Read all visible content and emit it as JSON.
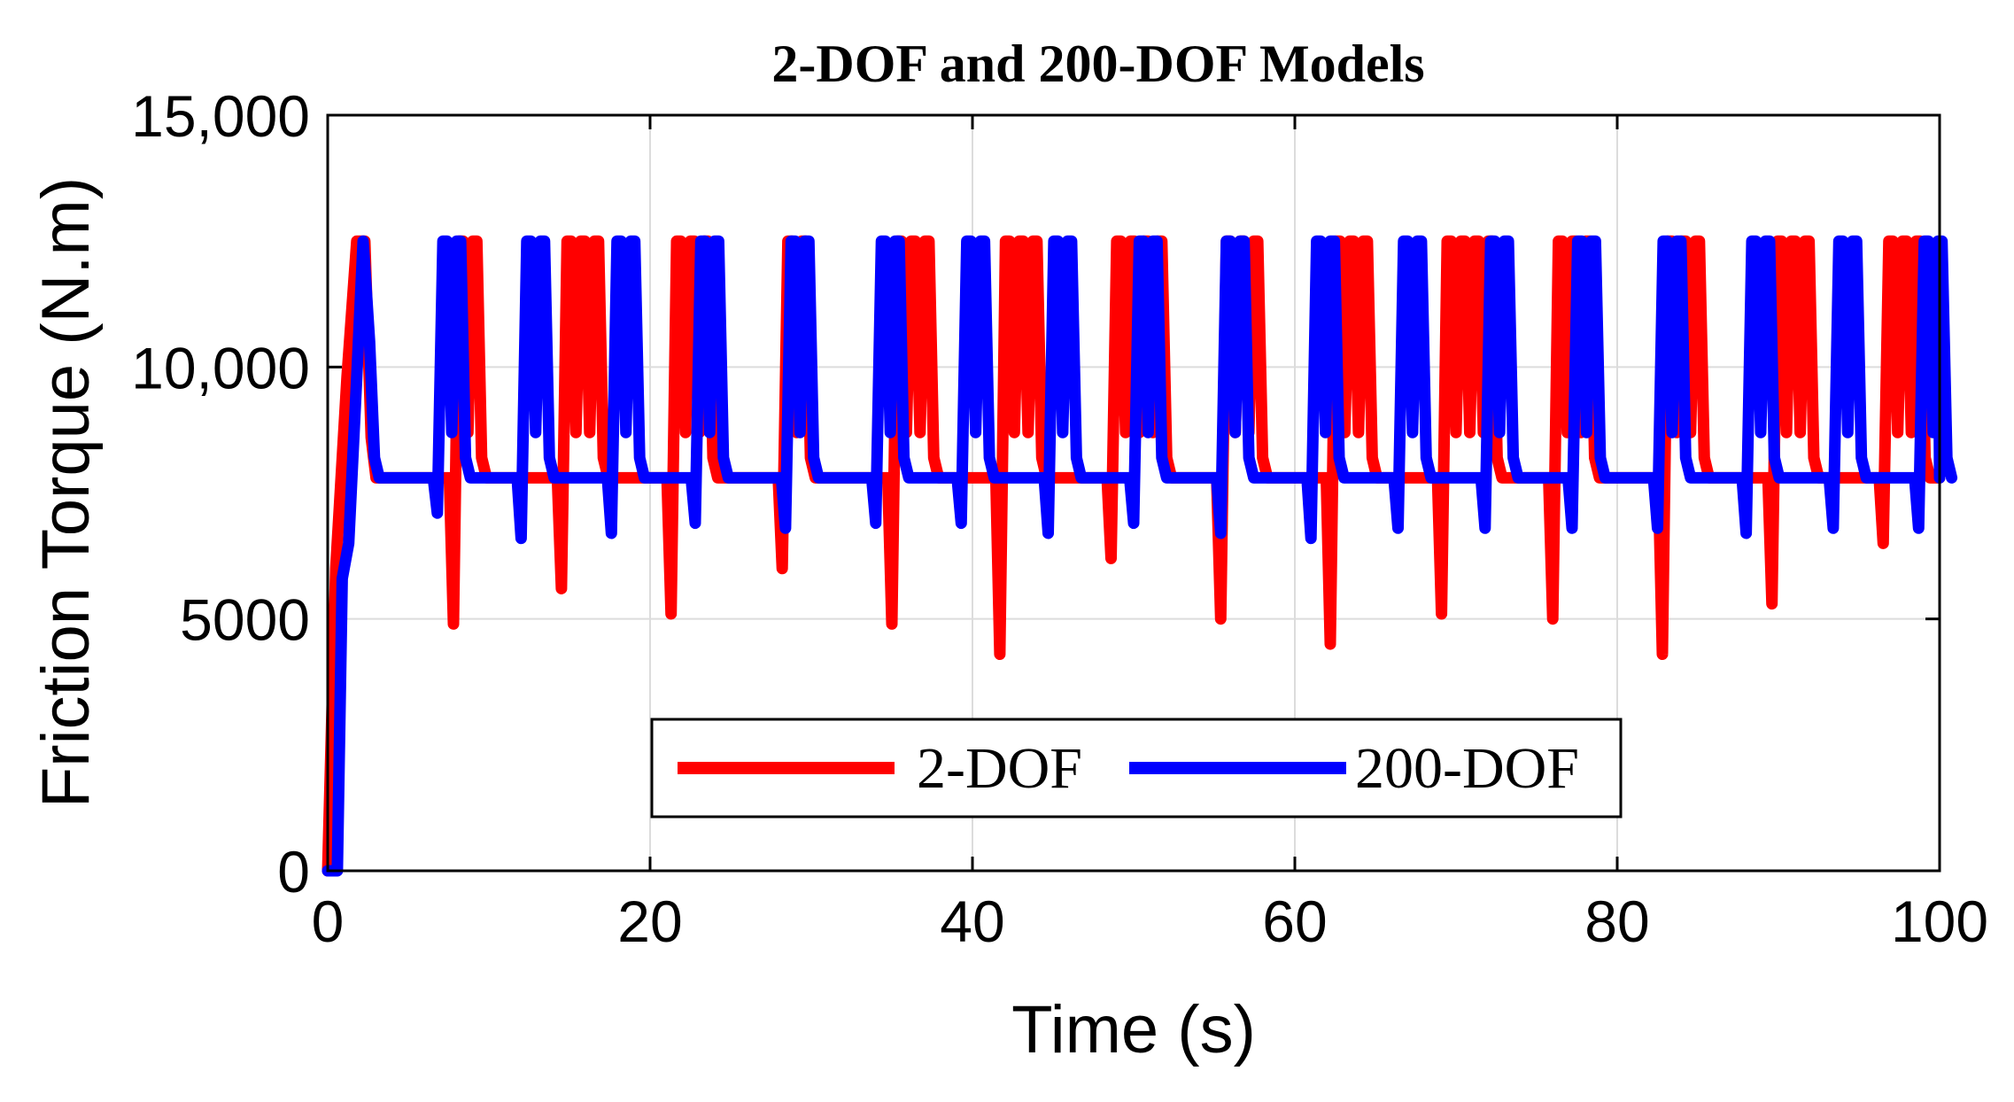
{
  "chart_data": {
    "type": "line",
    "title": "2-DOF and 200-DOF Models",
    "xlabel": "Time (s)",
    "ylabel": "Friction Torque (N.m)",
    "xlim": [
      0,
      100
    ],
    "ylim": [
      0,
      15000
    ],
    "x_ticks": [
      0,
      20,
      40,
      60,
      80,
      100
    ],
    "x_tick_labels": [
      "0",
      "20",
      "40",
      "60",
      "80",
      "100"
    ],
    "y_ticks": [
      0,
      5000,
      10000,
      15000
    ],
    "y_tick_labels": [
      "0",
      "5000",
      "10,000",
      "15,000"
    ],
    "grid": true,
    "legend_position": "bottom-center",
    "series": [
      {
        "name": "2-DOF",
        "color": "#ff0000",
        "baseline": 7800,
        "peak": 12500,
        "ramp": [
          [
            0,
            0
          ],
          [
            0.5,
            6000
          ],
          [
            1.2,
            9800
          ],
          [
            1.8,
            12500
          ],
          [
            2.3,
            12500
          ],
          [
            2.7,
            8600
          ],
          [
            3.0,
            7800
          ]
        ],
        "events": [
          {
            "t": 7.8,
            "dip": 4900,
            "peaks": 2
          },
          {
            "t": 14.5,
            "dip": 5600,
            "peaks": 3
          },
          {
            "t": 21.3,
            "dip": 5100,
            "peaks": 3
          },
          {
            "t": 28.2,
            "dip": 6000,
            "peaks": 2
          },
          {
            "t": 35.0,
            "dip": 4900,
            "peaks": 3
          },
          {
            "t": 41.7,
            "dip": 4300,
            "peaks": 3
          },
          {
            "t": 48.6,
            "dip": 6200,
            "peaks": 4
          },
          {
            "t": 55.4,
            "dip": 5000,
            "peaks": 3
          },
          {
            "t": 62.2,
            "dip": 4500,
            "peaks": 3
          },
          {
            "t": 69.1,
            "dip": 5100,
            "peaks": 4
          },
          {
            "t": 76.0,
            "dip": 5000,
            "peaks": 3
          },
          {
            "t": 82.8,
            "dip": 4300,
            "peaks": 3
          },
          {
            "t": 89.6,
            "dip": 5300,
            "peaks": 3
          },
          {
            "t": 96.5,
            "dip": 6500,
            "peaks": 3
          }
        ]
      },
      {
        "name": "200-DOF",
        "color": "#0000ff",
        "baseline": 7800,
        "peak": 12500,
        "ramp": [
          [
            0,
            0
          ],
          [
            0.6,
            0
          ],
          [
            0.9,
            5800
          ],
          [
            1.3,
            6500
          ],
          [
            1.8,
            9800
          ],
          [
            2.2,
            12500
          ],
          [
            2.6,
            10500
          ],
          [
            2.9,
            8200
          ],
          [
            3.2,
            7800
          ]
        ],
        "events": [
          {
            "t": 6.8,
            "dip": 7100,
            "peaks": 2
          },
          {
            "t": 12.0,
            "dip": 6600,
            "peaks": 2
          },
          {
            "t": 17.6,
            "dip": 6700,
            "peaks": 2
          },
          {
            "t": 22.8,
            "dip": 6900,
            "peaks": 2
          },
          {
            "t": 28.4,
            "dip": 6800,
            "peaks": 2
          },
          {
            "t": 34.0,
            "dip": 6900,
            "peaks": 2
          },
          {
            "t": 39.3,
            "dip": 6900,
            "peaks": 2
          },
          {
            "t": 44.7,
            "dip": 6700,
            "peaks": 2
          },
          {
            "t": 50.0,
            "dip": 6900,
            "peaks": 2
          },
          {
            "t": 55.4,
            "dip": 6700,
            "peaks": 2
          },
          {
            "t": 61.0,
            "dip": 6600,
            "peaks": 2
          },
          {
            "t": 66.4,
            "dip": 6800,
            "peaks": 2
          },
          {
            "t": 71.8,
            "dip": 6800,
            "peaks": 2
          },
          {
            "t": 77.2,
            "dip": 6800,
            "peaks": 2
          },
          {
            "t": 82.5,
            "dip": 6800,
            "peaks": 2
          },
          {
            "t": 88.0,
            "dip": 6700,
            "peaks": 2
          },
          {
            "t": 93.4,
            "dip": 6800,
            "peaks": 2
          },
          {
            "t": 98.7,
            "dip": 6800,
            "peaks": 2
          }
        ]
      }
    ]
  }
}
